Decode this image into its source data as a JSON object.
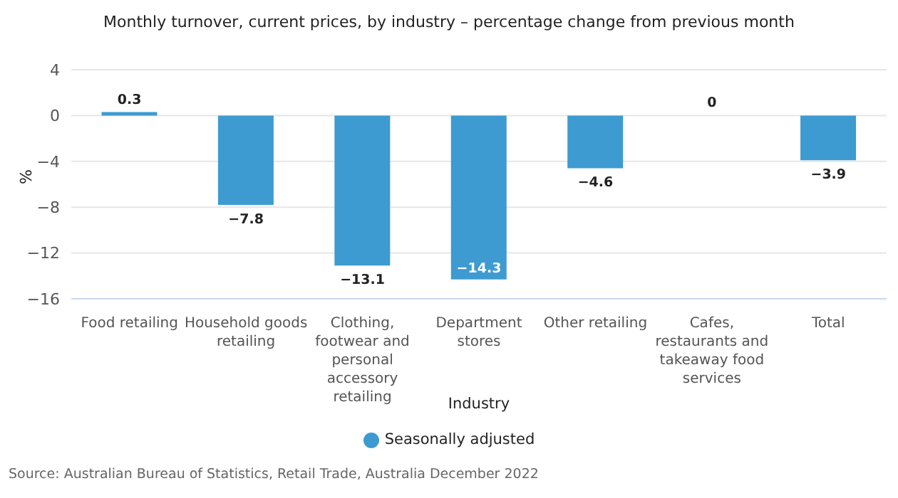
{
  "chart_data": {
    "type": "bar",
    "title": "Monthly turnover, current prices, by industry – percentage change from previous month",
    "xlabel": "Industry",
    "ylabel": "%",
    "categories": [
      "Food retailing",
      "Household goods retailing",
      "Clothing, footwear and personal accessory retailing",
      "Department stores",
      "Other retailing",
      "Cafes, restaurants and takeaway food services",
      "Total"
    ],
    "series": [
      {
        "name": "Seasonally adjusted",
        "color": "#3d9bd1",
        "values": [
          0.3,
          -7.8,
          -13.1,
          -14.3,
          -4.6,
          0,
          -3.9
        ],
        "value_labels": [
          "0.3",
          "−7.8",
          "−13.1",
          "−14.3",
          "−4.6",
          "0",
          "−3.9"
        ]
      }
    ],
    "ylim": [
      -16,
      4
    ],
    "yticks": [
      4,
      {
        "value": 0,
        "label": "0"
      },
      {
        "value": -4,
        "label": "−4"
      },
      {
        "value": -8,
        "label": "−8"
      },
      {
        "value": -12,
        "label": "−12"
      },
      {
        "value": -16,
        "label": "−16"
      }
    ],
    "grid": "y",
    "legend": "bottom",
    "annotations": [
      "Source: Australian Bureau of Statistics, Retail Trade, Australia December 2022"
    ]
  }
}
